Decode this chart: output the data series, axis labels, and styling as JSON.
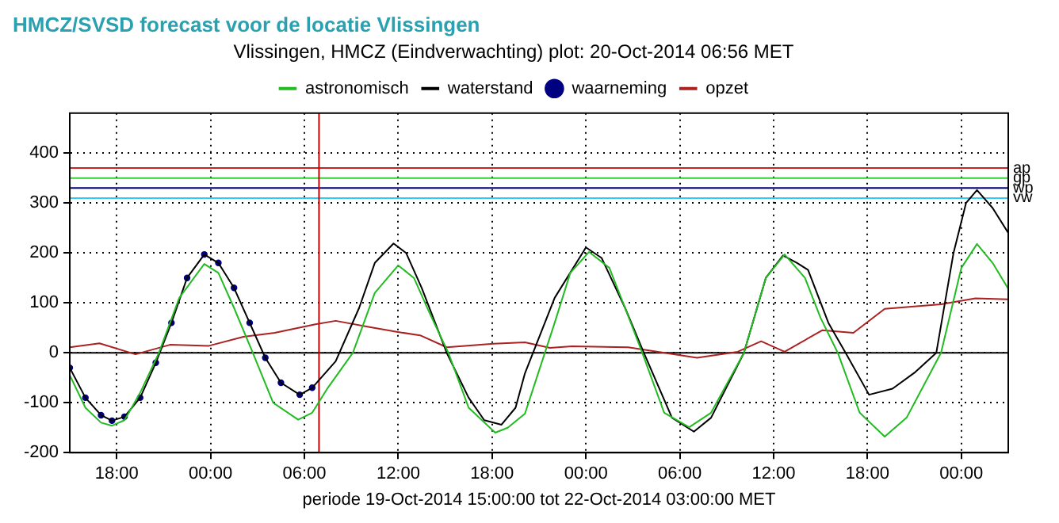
{
  "chart_data": {
    "type": "line",
    "title": "HMCZ/SVSD forecast voor de locatie Vlissingen",
    "subtitle": "Vlissingen, HMCZ (Eindverwachting) plot: 20-Oct-2014 06:56 MET",
    "xlabel": "periode 19-Oct-2014 15:00:00 tot 22-Oct-2014 03:00:00 MET",
    "xlim": [
      "2014-10-19T15:00",
      "2014-10-22T03:00"
    ],
    "xticks": [
      {
        "value": "2014-10-19T18:00",
        "label": "18:00"
      },
      {
        "value": "2014-10-20T00:00",
        "label": "00:00"
      },
      {
        "value": "2014-10-20T06:00",
        "label": "06:00"
      },
      {
        "value": "2014-10-20T12:00",
        "label": "12:00"
      },
      {
        "value": "2014-10-20T18:00",
        "label": "18:00"
      },
      {
        "value": "2014-10-21T00:00",
        "label": "00:00"
      },
      {
        "value": "2014-10-21T06:00",
        "label": "06:00"
      },
      {
        "value": "2014-10-21T12:00",
        "label": "12:00"
      },
      {
        "value": "2014-10-21T18:00",
        "label": "18:00"
      },
      {
        "value": "2014-10-22T00:00",
        "label": "00:00"
      }
    ],
    "ylim": [
      -200,
      480
    ],
    "yticks": [
      -200,
      -100,
      0,
      100,
      200,
      300,
      400
    ],
    "grid": true,
    "legend": "top",
    "marker": "none",
    "series": [
      {
        "name": "astronomisch",
        "color": "#22bb22",
        "x": [
          "2014-10-19T15:00",
          "2014-10-19T16:00",
          "2014-10-19T17:00",
          "2014-10-19T17:42",
          "2014-10-19T18:30",
          "2014-10-19T19:30",
          "2014-10-19T20:42",
          "2014-10-19T22:00",
          "2014-10-19T23:36",
          "2014-10-20T00:30",
          "2014-10-20T01:30",
          "2014-10-20T02:42",
          "2014-10-20T04:00",
          "2014-10-20T05:36",
          "2014-10-20T06:30",
          "2014-10-20T07:30",
          "2014-10-20T09:06",
          "2014-10-20T10:30",
          "2014-10-20T12:00",
          "2014-10-20T13:00",
          "2014-10-20T14:00",
          "2014-10-20T15:12",
          "2014-10-20T16:30",
          "2014-10-20T18:12",
          "2014-10-20T19:00",
          "2014-10-20T20:06",
          "2014-10-20T22:00",
          "2014-10-20T23:00",
          "2014-10-21T00:12",
          "2014-10-21T01:30",
          "2014-10-21T02:30",
          "2014-10-21T03:36",
          "2014-10-21T05:00",
          "2014-10-21T06:36",
          "2014-10-21T08:00",
          "2014-10-21T10:06",
          "2014-10-21T11:30",
          "2014-10-21T12:42",
          "2014-10-21T14:00",
          "2014-10-21T15:00",
          "2014-10-21T16:06",
          "2014-10-21T17:30",
          "2014-10-21T19:06",
          "2014-10-21T20:30",
          "2014-10-21T22:42",
          "2014-10-22T00:00",
          "2014-10-22T01:00",
          "2014-10-22T02:00",
          "2014-10-22T03:00"
        ],
        "values": [
          -45,
          -110,
          -140,
          -146,
          -135,
          -80,
          0,
          110,
          178,
          160,
          90,
          0,
          -100,
          -134,
          -120,
          -70,
          0,
          120,
          175,
          150,
          80,
          0,
          -110,
          -160,
          -150,
          -122,
          60,
          160,
          202,
          170,
          90,
          0,
          -120,
          -149,
          -120,
          0,
          150,
          197,
          150,
          70,
          0,
          -120,
          -168,
          -130,
          0,
          170,
          218,
          180,
          128
        ]
      },
      {
        "name": "waterstand",
        "color": "#000000",
        "x": [
          "2014-10-19T15:00",
          "2014-10-19T16:00",
          "2014-10-19T17:00",
          "2014-10-19T17:42",
          "2014-10-19T18:30",
          "2014-10-19T19:30",
          "2014-10-19T20:30",
          "2014-10-19T21:30",
          "2014-10-19T22:30",
          "2014-10-19T23:36",
          "2014-10-20T00:30",
          "2014-10-20T01:30",
          "2014-10-20T02:30",
          "2014-10-20T03:30",
          "2014-10-20T04:30",
          "2014-10-20T05:42",
          "2014-10-20T06:30",
          "2014-10-20T08:00",
          "2014-10-20T09:30",
          "2014-10-20T10:30",
          "2014-10-20T11:42",
          "2014-10-20T12:30",
          "2014-10-20T13:30",
          "2014-10-20T15:06",
          "2014-10-20T16:30",
          "2014-10-20T17:30",
          "2014-10-20T18:36",
          "2014-10-20T19:30",
          "2014-10-20T20:06",
          "2014-10-20T22:00",
          "2014-10-21T00:00",
          "2014-10-21T01:00",
          "2014-10-21T02:30",
          "2014-10-21T03:42",
          "2014-10-21T05:30",
          "2014-10-21T06:54",
          "2014-10-21T08:00",
          "2014-10-21T10:06",
          "2014-10-21T11:30",
          "2014-10-21T12:36",
          "2014-10-21T13:30",
          "2014-10-21T14:12",
          "2014-10-21T15:30",
          "2014-10-21T16:36",
          "2014-10-21T18:06",
          "2014-10-21T19:36",
          "2014-10-21T21:00",
          "2014-10-21T22:24",
          "2014-10-21T23:30",
          "2014-10-22T00:18",
          "2014-10-22T01:00",
          "2014-10-22T02:00",
          "2014-10-22T03:00"
        ],
        "values": [
          -30,
          -90,
          -125,
          -136,
          -128,
          -90,
          -20,
          60,
          150,
          197,
          180,
          130,
          60,
          -10,
          -60,
          -84,
          -70,
          -17,
          90,
          180,
          219,
          200,
          130,
          0,
          -90,
          -135,
          -144,
          -110,
          -41,
          110,
          211,
          190,
          90,
          0,
          -130,
          -158,
          -130,
          0,
          150,
          195,
          180,
          166,
          60,
          0,
          -84,
          -72,
          -40,
          0,
          200,
          300,
          326,
          290,
          240
        ]
      },
      {
        "name": "waarneming",
        "type": "scatter",
        "marker": "circle",
        "color": "#000080",
        "x": [
          "2014-10-19T15:00",
          "2014-10-19T16:00",
          "2014-10-19T17:00",
          "2014-10-19T17:42",
          "2014-10-19T18:30",
          "2014-10-19T19:30",
          "2014-10-19T20:30",
          "2014-10-19T21:30",
          "2014-10-19T22:30",
          "2014-10-19T23:36",
          "2014-10-20T00:30",
          "2014-10-20T01:30",
          "2014-10-20T02:30",
          "2014-10-20T03:30",
          "2014-10-20T04:30",
          "2014-10-20T05:42",
          "2014-10-20T06:30"
        ],
        "values": [
          -30,
          -90,
          -125,
          -136,
          -128,
          -90,
          -20,
          60,
          150,
          197,
          180,
          130,
          60,
          -10,
          -60,
          -84,
          -70
        ]
      },
      {
        "name": "opzet",
        "color": "#aa2222",
        "x": [
          "2014-10-19T15:00",
          "2014-10-19T16:54",
          "2014-10-19T19:12",
          "2014-10-19T21:24",
          "2014-10-19T23:54",
          "2014-10-20T02:06",
          "2014-10-20T04:06",
          "2014-10-20T06:42",
          "2014-10-20T08:00",
          "2014-10-20T10:06",
          "2014-10-20T11:54",
          "2014-10-20T13:24",
          "2014-10-20T15:06",
          "2014-10-20T18:06",
          "2014-10-20T20:06",
          "2014-10-20T21:42",
          "2014-10-20T23:06",
          "2014-10-21T02:42",
          "2014-10-21T07:06",
          "2014-10-21T09:42",
          "2014-10-21T11:12",
          "2014-10-21T12:42",
          "2014-10-21T15:06",
          "2014-10-21T17:06",
          "2014-10-21T19:06",
          "2014-10-21T22:42",
          "2014-10-22T00:54",
          "2014-10-22T03:00"
        ],
        "values": [
          11,
          19,
          -3,
          16,
          14,
          32,
          40,
          57,
          64,
          52,
          42,
          35,
          11,
          18,
          21,
          10,
          13,
          11,
          -10,
          2,
          23,
          2,
          45,
          40,
          88,
          97,
          109,
          107
        ]
      }
    ],
    "ref_lines": [
      {
        "axis": "y",
        "value": 0,
        "color": "#000000"
      },
      {
        "axis": "y",
        "value": 370,
        "label": "ap",
        "color": "#cc2222"
      },
      {
        "axis": "y",
        "value": 350,
        "label": "gp",
        "color": "#33cc33"
      },
      {
        "axis": "y",
        "value": 330,
        "label": "wp",
        "color": "#000080"
      },
      {
        "axis": "y",
        "value": 310,
        "label": "vw",
        "color": "#33ccee"
      },
      {
        "axis": "x",
        "value": "2014-10-20T06:56",
        "color": "#cc0000"
      }
    ]
  }
}
